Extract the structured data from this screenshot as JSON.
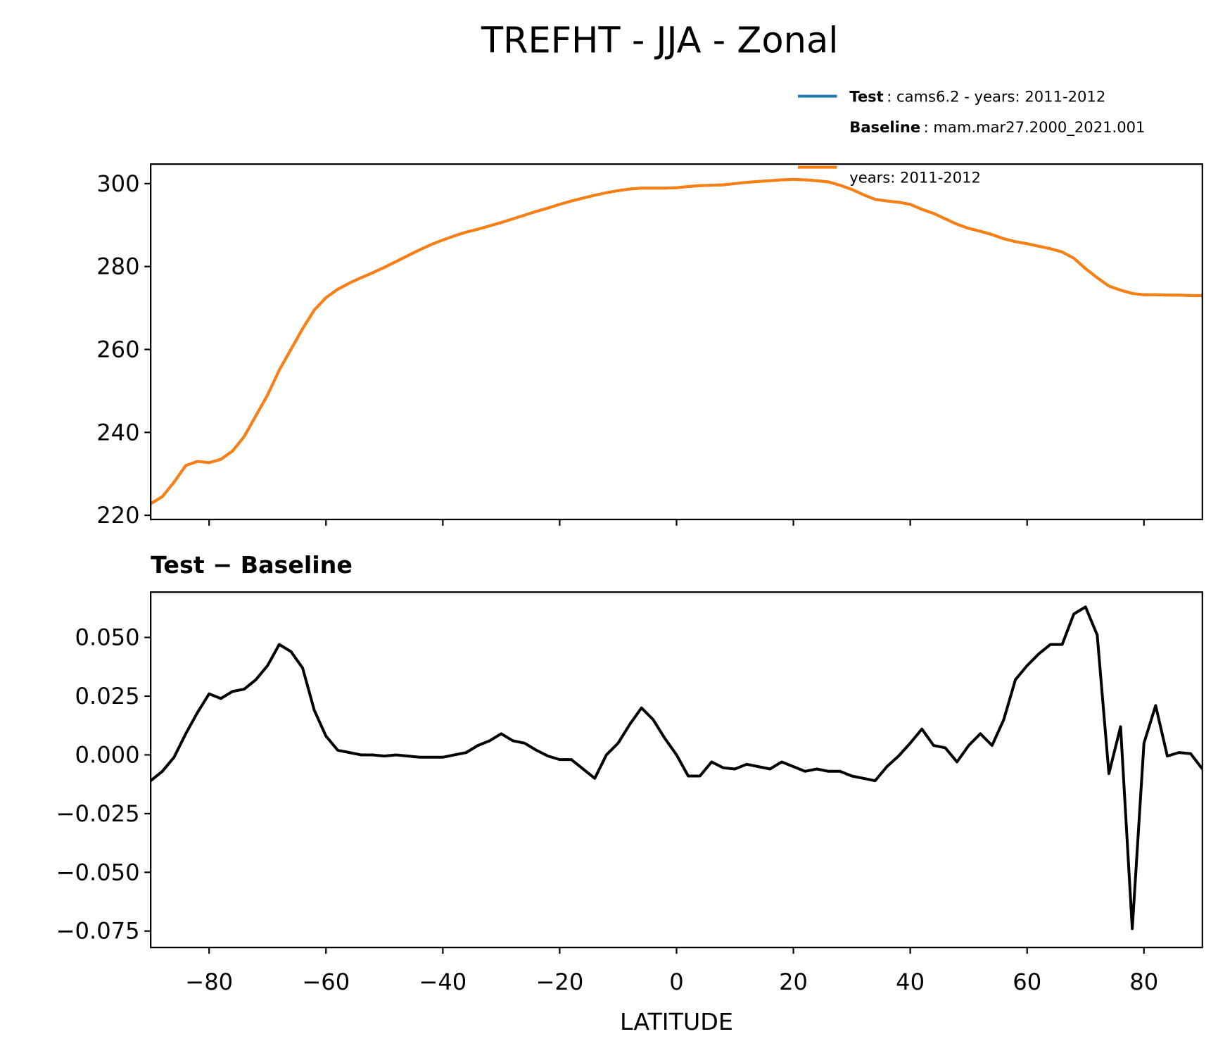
{
  "chart_data": [
    {
      "type": "line",
      "title": "TREFHT - JJA - Zonal",
      "legend": "upper right",
      "x": [
        -90,
        -88,
        -86,
        -84,
        -82,
        -80,
        -78,
        -76,
        -74,
        -72,
        -70,
        -68,
        -66,
        -64,
        -62,
        -60,
        -58,
        -56,
        -54,
        -52,
        -50,
        -48,
        -46,
        -44,
        -42,
        -40,
        -38,
        -36,
        -34,
        -32,
        -30,
        -28,
        -26,
        -24,
        -22,
        -20,
        -18,
        -16,
        -14,
        -12,
        -10,
        -8,
        -6,
        -4,
        -2,
        0,
        2,
        4,
        6,
        8,
        10,
        12,
        14,
        16,
        18,
        20,
        22,
        24,
        26,
        28,
        30,
        32,
        34,
        36,
        38,
        40,
        42,
        44,
        46,
        48,
        50,
        52,
        54,
        56,
        58,
        60,
        62,
        64,
        66,
        68,
        70,
        72,
        74,
        76,
        78,
        80,
        82,
        84,
        86,
        88,
        90
      ],
      "series": [
        {
          "name": "Test",
          "label": ": cams6.2 - years: 2011-2012",
          "color": "#1f77b4",
          "values": [
            222.8,
            224.5,
            228,
            232,
            233,
            232.7,
            233.5,
            235.5,
            239,
            244,
            249,
            255,
            260,
            265,
            269.5,
            272.5,
            274.5,
            276,
            277.3,
            278.5,
            279.8,
            281.2,
            282.6,
            284,
            285.3,
            286.4,
            287.4,
            288.3,
            289,
            289.8,
            290.6,
            291.5,
            292.4,
            293.3,
            294.1,
            295,
            295.8,
            296.5,
            297.2,
            297.8,
            298.3,
            298.7,
            298.9,
            298.9,
            298.9,
            299,
            299.3,
            299.5,
            299.6,
            299.7,
            300,
            300.3,
            300.5,
            300.7,
            300.9,
            301,
            300.9,
            300.7,
            300.4,
            299.6,
            298.6,
            297.3,
            296.2,
            295.8,
            295.5,
            295,
            293.8,
            292.8,
            291.5,
            290.2,
            289.2,
            288.5,
            287.7,
            286.7,
            286,
            285.5,
            284.9,
            284.3,
            283.5,
            282,
            279.5,
            277.3,
            275.3,
            274.3,
            273.5,
            273.2,
            273.2,
            273.1,
            273.1,
            273,
            273
          ]
        },
        {
          "name": "Baseline",
          "label": ": mam.mar27.2000_2021.001",
          "label2": "years: 2011-2012",
          "color": "#ff7f0e",
          "values": [
            222.8,
            224.5,
            228,
            232,
            233,
            232.7,
            233.5,
            235.5,
            239,
            244,
            249,
            255,
            260,
            265,
            269.5,
            272.5,
            274.5,
            276,
            277.3,
            278.5,
            279.8,
            281.2,
            282.6,
            284,
            285.3,
            286.4,
            287.4,
            288.3,
            289,
            289.8,
            290.6,
            291.5,
            292.4,
            293.3,
            294.1,
            295,
            295.8,
            296.5,
            297.2,
            297.8,
            298.3,
            298.7,
            298.9,
            298.9,
            298.9,
            299,
            299.3,
            299.5,
            299.6,
            299.7,
            300,
            300.3,
            300.5,
            300.7,
            300.9,
            301,
            300.9,
            300.7,
            300.4,
            299.6,
            298.6,
            297.3,
            296.2,
            295.8,
            295.5,
            295,
            293.8,
            292.8,
            291.5,
            290.2,
            289.2,
            288.5,
            287.7,
            286.7,
            286,
            285.5,
            284.9,
            284.3,
            283.5,
            282,
            279.5,
            277.3,
            275.3,
            274.3,
            273.5,
            273.2,
            273.2,
            273.1,
            273.1,
            273,
            273
          ]
        }
      ],
      "xlim": [
        -90,
        90
      ],
      "xticks": [
        -80,
        -60,
        -40,
        -20,
        0,
        20,
        40,
        60,
        80
      ],
      "xtick_labels": false,
      "ylim": [
        219,
        304.7
      ],
      "yticks": [
        220,
        240,
        260,
        280,
        300
      ]
    },
    {
      "type": "line",
      "title": "Test − Baseline",
      "xlabel": "LATITUDE",
      "x": [
        -90,
        -88,
        -86,
        -84,
        -82,
        -80,
        -78,
        -76,
        -74,
        -72,
        -70,
        -68,
        -66,
        -64,
        -62,
        -60,
        -58,
        -56,
        -54,
        -52,
        -50,
        -48,
        -46,
        -44,
        -42,
        -40,
        -38,
        -36,
        -34,
        -32,
        -30,
        -28,
        -26,
        -24,
        -22,
        -20,
        -18,
        -16,
        -14,
        -12,
        -10,
        -8,
        -6,
        -4,
        -2,
        0,
        2,
        4,
        6,
        8,
        10,
        12,
        14,
        16,
        18,
        20,
        22,
        24,
        26,
        28,
        30,
        32,
        34,
        36,
        38,
        40,
        42,
        44,
        46,
        48,
        50,
        52,
        54,
        56,
        58,
        60,
        62,
        64,
        66,
        68,
        70,
        72,
        74,
        76,
        78,
        80,
        82,
        84,
        86,
        88,
        90
      ],
      "series": [
        {
          "color": "#000000",
          "values": [
            -0.011,
            -0.007,
            -0.001,
            0.009,
            0.018,
            0.026,
            0.024,
            0.027,
            0.028,
            0.032,
            0.038,
            0.047,
            0.044,
            0.037,
            0.019,
            0.008,
            0.002,
            0.001,
            0,
            0,
            -0.0005,
            0,
            -0.0005,
            -0.001,
            -0.001,
            -0.001,
            0,
            0.001,
            0.004,
            0.006,
            0.009,
            0.006,
            0.005,
            0.002,
            -0.0005,
            -0.002,
            -0.002,
            -0.006,
            -0.01,
            0,
            0.005,
            0.013,
            0.02,
            0.015,
            0.007,
            0,
            -0.009,
            -0.009,
            -0.003,
            -0.0055,
            -0.006,
            -0.004,
            -0.005,
            -0.006,
            -0.003,
            -0.005,
            -0.007,
            -0.006,
            -0.007,
            -0.007,
            -0.009,
            -0.01,
            -0.011,
            -0.005,
            -0.0005,
            0.005,
            0.011,
            0.004,
            0.003,
            -0.003,
            0.004,
            0.009,
            0.004,
            0.015,
            0.032,
            0.038,
            0.043,
            0.047,
            0.047,
            0.06,
            0.063,
            0.051,
            -0.008,
            0.012,
            -0.074,
            0.005,
            0.021,
            -0.0005,
            0.001,
            0.0005,
            -0.006
          ]
        }
      ],
      "xlim": [
        -90,
        90
      ],
      "xticks": [
        {
          "value": -80,
          "label": "−80"
        },
        {
          "value": -60,
          "label": "−60"
        },
        {
          "value": -40,
          "label": "−40"
        },
        {
          "value": -20,
          "label": "−20"
        },
        0,
        20,
        40,
        60,
        80
      ],
      "ylim": [
        -0.082,
        0.0693
      ],
      "yticks": [
        {
          "value": -0.075,
          "label": "−0.075"
        },
        {
          "value": -0.05,
          "label": "−0.050"
        },
        {
          "value": -0.025,
          "label": "−0.025"
        },
        {
          "value": 0,
          "label": "0.000"
        },
        0.025,
        {
          "value": 0.05,
          "label": "0.050"
        }
      ]
    }
  ]
}
